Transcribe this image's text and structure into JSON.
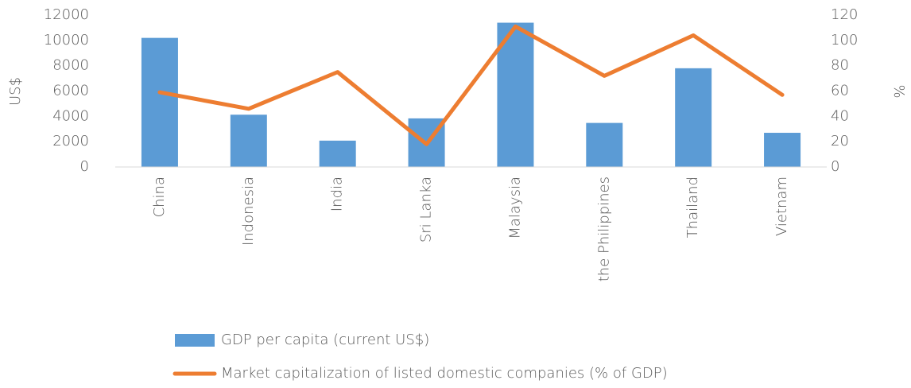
{
  "chart_data": {
    "type": "bar",
    "categories": [
      "China",
      "Indonesia",
      "India",
      "Sri Lanka",
      "Malaysia",
      "the Philippines",
      "Thailand",
      "Vietnam"
    ],
    "ylabel": "US$",
    "y2label": "%",
    "ylim": [
      0,
      12000
    ],
    "yticks": [
      0,
      2000,
      4000,
      6000,
      8000,
      10000,
      12000
    ],
    "y2lim": [
      0,
      120
    ],
    "y2ticks": [
      0,
      20,
      40,
      60,
      80,
      100,
      120
    ],
    "legend": "bottom",
    "grid": false,
    "series": [
      {
        "name": "GDP per capita (current US$)",
        "type": "bar",
        "color": "#5b9bd5",
        "values": [
          10200,
          4130,
          2080,
          3840,
          11400,
          3480,
          7800,
          2700
        ]
      },
      {
        "name": "Market capitalization of listed domestic companies (% of GDP)",
        "type": "line",
        "axis": "y2",
        "color": "#ed7d31",
        "values": [
          59,
          46,
          75,
          18,
          111,
          72,
          104,
          57
        ]
      }
    ]
  }
}
